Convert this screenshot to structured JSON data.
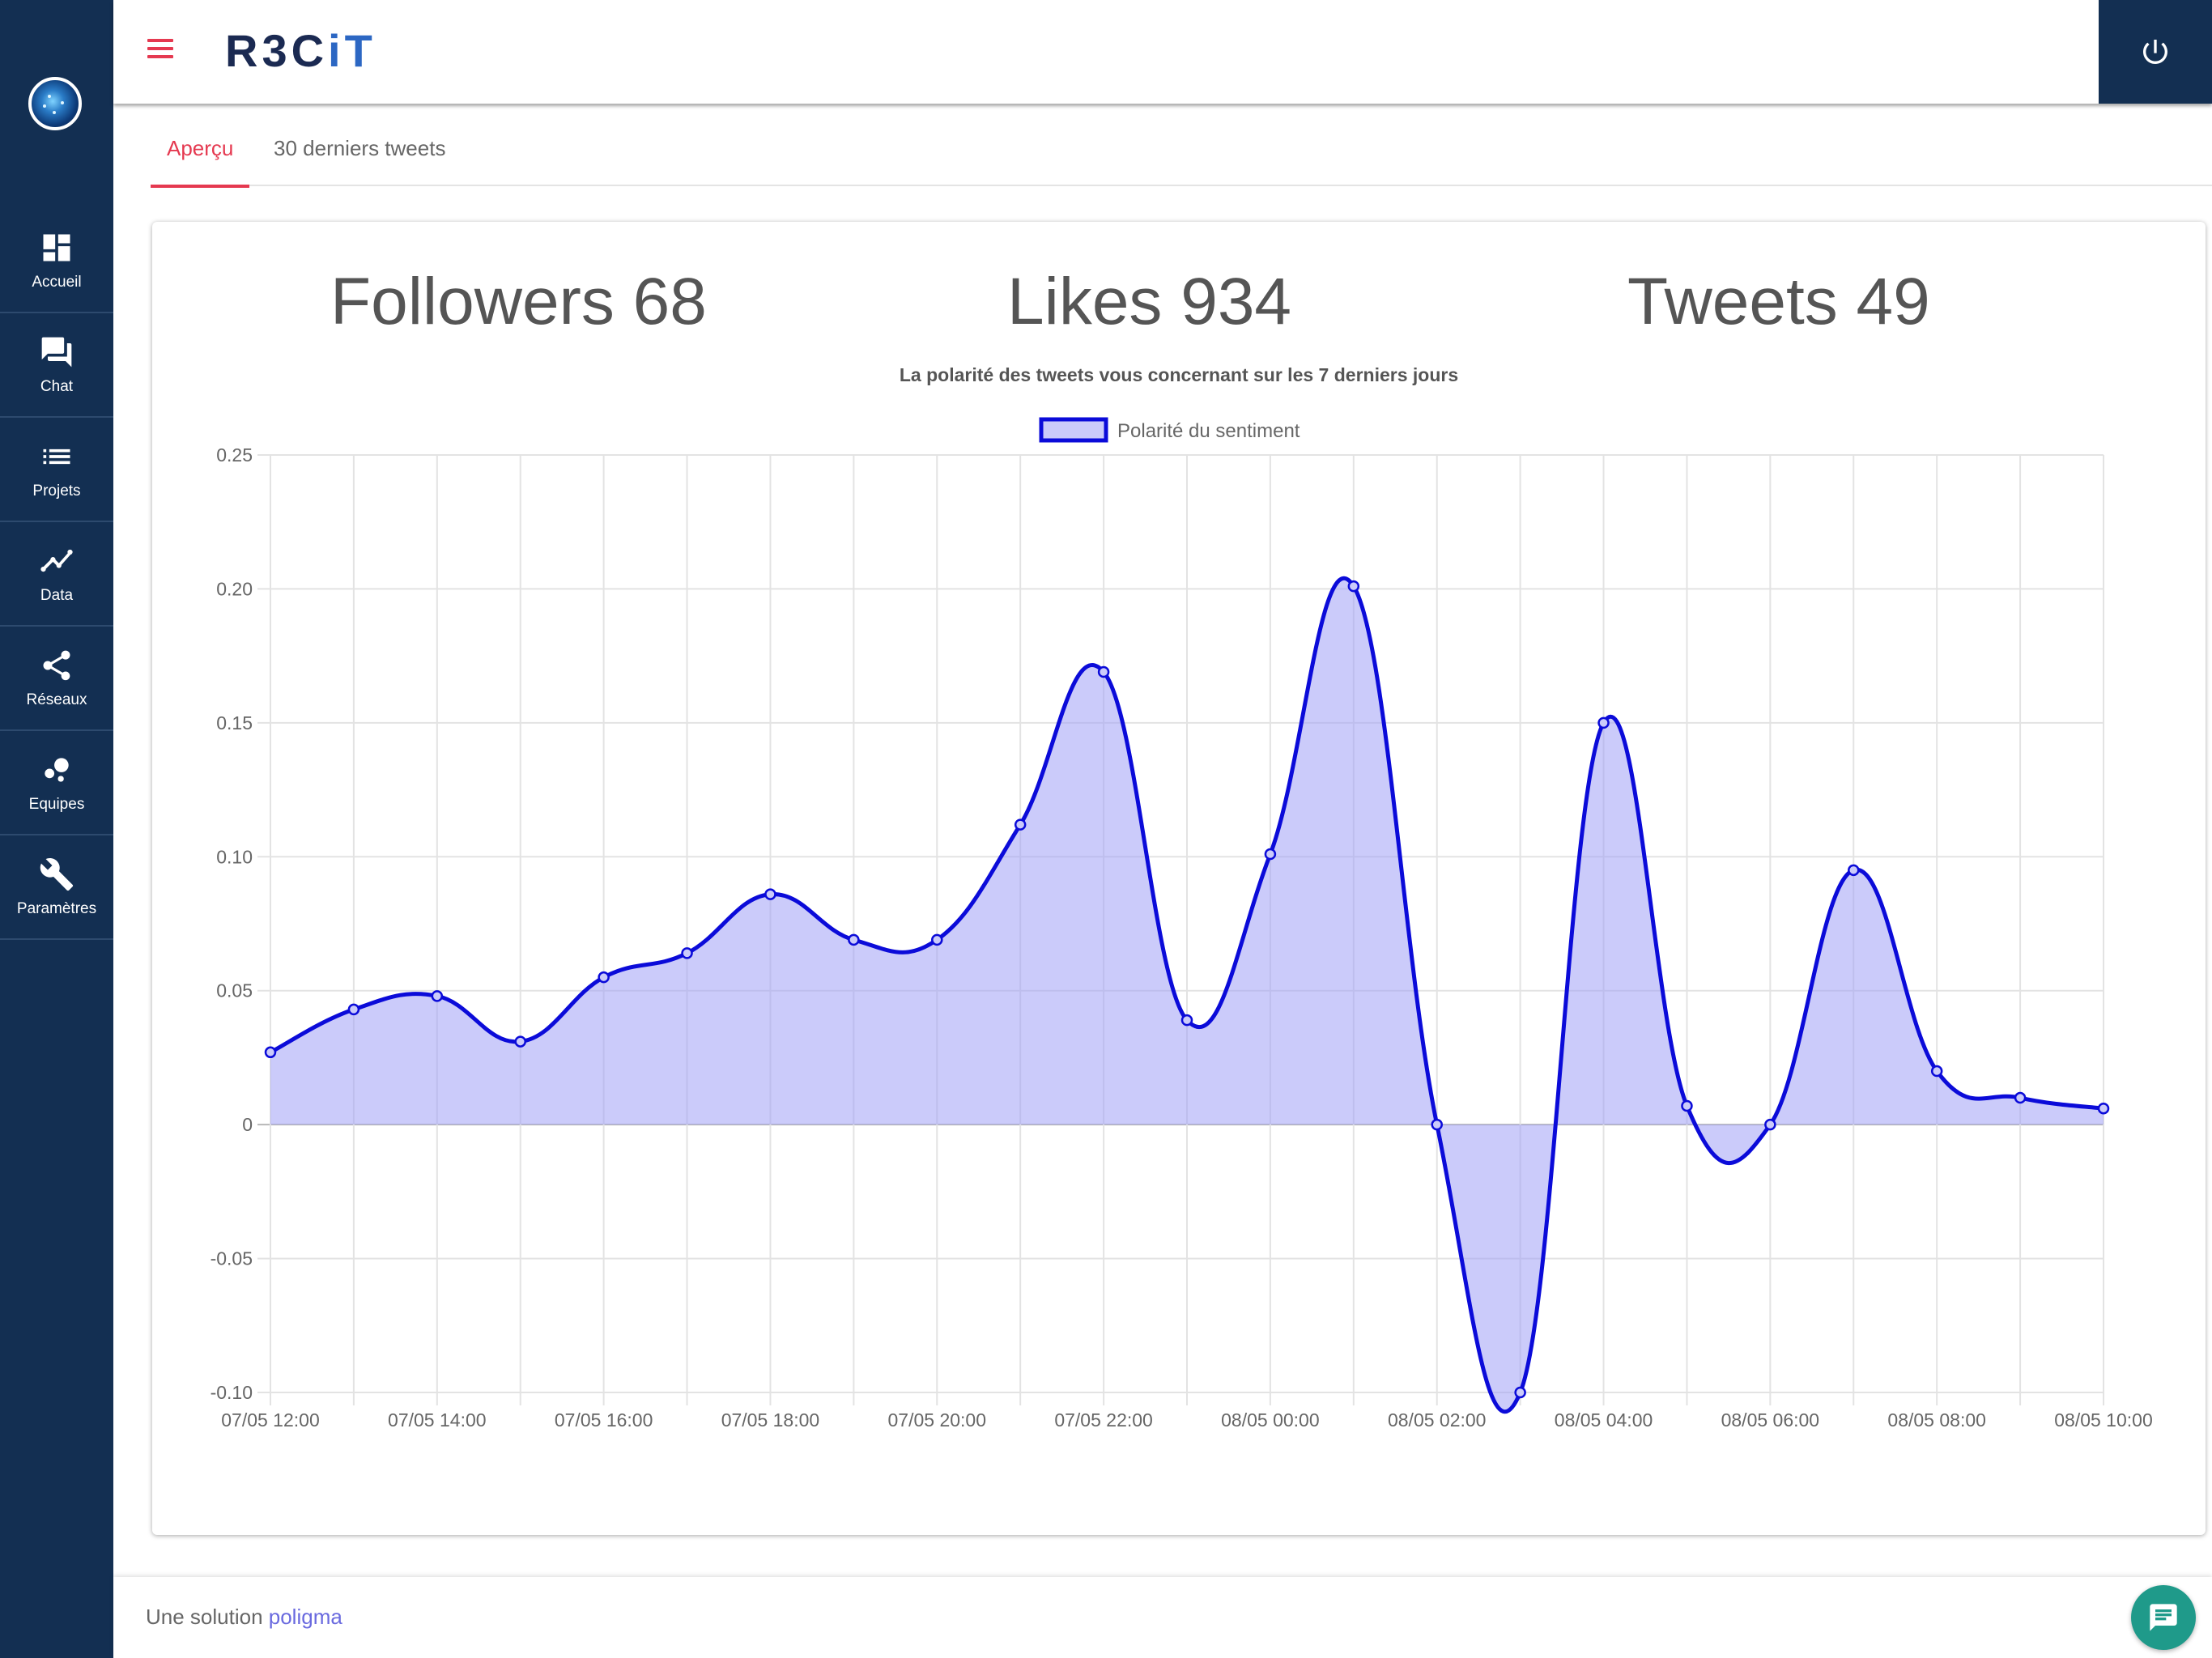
{
  "sidebar": {
    "items": [
      {
        "label": "Accueil",
        "icon": "dashboard-icon"
      },
      {
        "label": "Chat",
        "icon": "forum-icon"
      },
      {
        "label": "Projets",
        "icon": "list-icon"
      },
      {
        "label": "Data",
        "icon": "line-chart-icon"
      },
      {
        "label": "Réseaux",
        "icon": "share-icon"
      },
      {
        "label": "Equipes",
        "icon": "bubbles-icon"
      },
      {
        "label": "Paramètres",
        "icon": "wrench-icon"
      }
    ]
  },
  "header": {
    "logo_part1": "R3C",
    "logo_part2": "iT"
  },
  "tabs": [
    {
      "label": "Aperçu"
    },
    {
      "label": "30 derniers tweets"
    }
  ],
  "stats": {
    "followers": "Followers 68",
    "likes": "Likes 934",
    "tweets": "Tweets 49"
  },
  "colors": {
    "accent": "#e53950",
    "sidebar": "#132f52",
    "series_line": "#0b0bd9",
    "series_fill": "#cbcbfa"
  },
  "chart_data": {
    "type": "area",
    "title": "La polarité des tweets vous concernant sur les 7 derniers jours",
    "series": [
      {
        "name": "Polarité du sentiment",
        "values": [
          0.027,
          0.043,
          0.048,
          0.031,
          0.055,
          0.064,
          0.086,
          0.069,
          0.069,
          0.112,
          0.169,
          0.039,
          0.101,
          0.201,
          0.0,
          -0.1,
          0.15,
          0.007,
          0.0,
          0.095,
          0.02,
          0.01,
          0.006
        ]
      }
    ],
    "x_tick_labels": [
      "07/05 12:00",
      "07/05 14:00",
      "07/05 16:00",
      "07/05 18:00",
      "07/05 20:00",
      "07/05 22:00",
      "08/05 00:00",
      "08/05 02:00",
      "08/05 04:00",
      "08/05 06:00",
      "08/05 08:00",
      "08/05 10:00"
    ],
    "y_tick_labels": [
      "0.25",
      "0.20",
      "0.15",
      "0.10",
      "0.05",
      "0",
      "-0.05",
      "-0.10"
    ],
    "ylim": [
      -0.1,
      0.25
    ],
    "grid": true,
    "legend_position": "top"
  },
  "footer": {
    "text": "Une solution ",
    "link": "poligma"
  }
}
